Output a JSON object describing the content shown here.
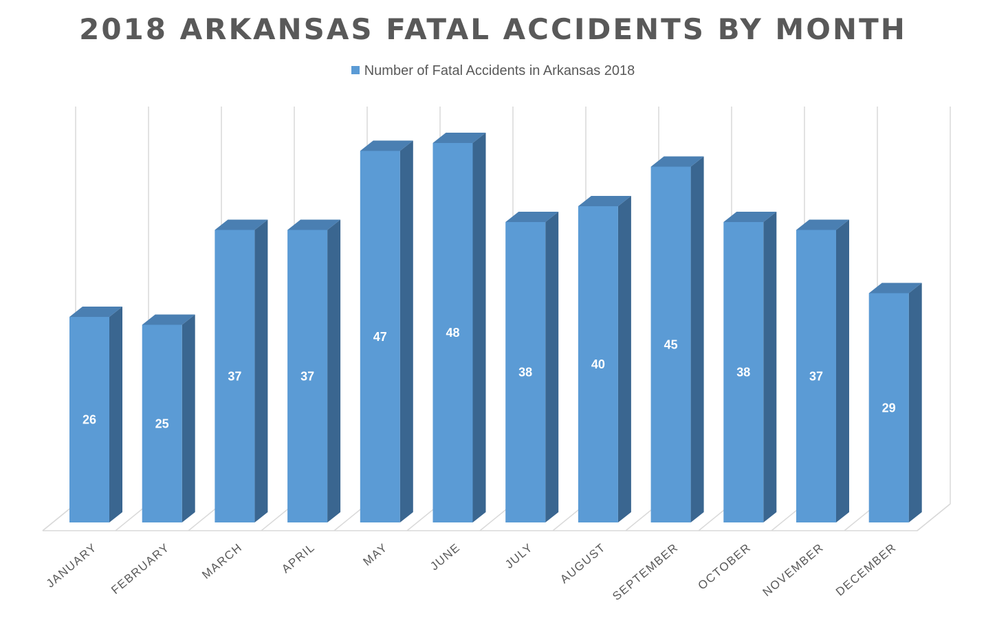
{
  "chart_data": {
    "type": "bar",
    "title": "2018 ARKANSAS FATAL ACCIDENTS BY MONTH",
    "categories": [
      "JANUARY",
      "FEBRUARY",
      "MARCH",
      "APRIL",
      "MAY",
      "JUNE",
      "JULY",
      "AUGUST",
      "SEPTEMBER",
      "OCTOBER",
      "NOVEMBER",
      "DECEMBER"
    ],
    "series": [
      {
        "name": "Number of Fatal Accidents in Arkansas 2018",
        "values": [
          26,
          25,
          37,
          37,
          47,
          48,
          38,
          40,
          45,
          38,
          37,
          29
        ]
      }
    ],
    "xlabel": "",
    "ylabel": "",
    "ylim": [
      0,
      50
    ],
    "legend": "top-center",
    "grid": "vertical",
    "data_labels": true,
    "style": "3d-column",
    "colors": {
      "front": "#5b9bd5",
      "top": "#4a7fb2",
      "side": "#3a6690",
      "grid": "#d9d9d9",
      "text": "#595959"
    }
  }
}
